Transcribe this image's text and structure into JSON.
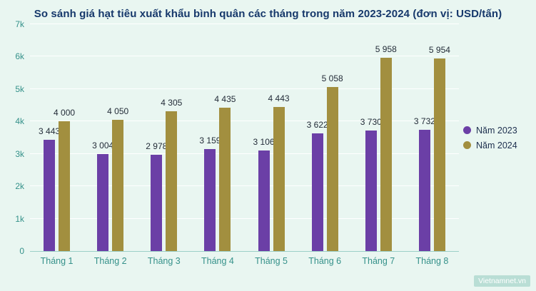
{
  "title": "So sánh giá hạt tiêu xuất khẩu bình quân các tháng trong năm 2023-2024 (đơn vị: USD/tấn)",
  "watermark": "Vietnamnet.vn",
  "colors": {
    "background": "#e9f6f1",
    "series_2023": "#6b3fa6",
    "series_2024": "#a28f3f",
    "axis_text": "#35918a",
    "title_text": "#16386b",
    "label_text": "#232c38"
  },
  "chart_data": {
    "type": "bar",
    "title": "So sánh giá hạt tiêu xuất khẩu bình quân các tháng trong năm 2023-2024 (đơn vị: USD/tấn)",
    "categories": [
      "Tháng 1",
      "Tháng 2",
      "Tháng 3",
      "Tháng 4",
      "Tháng 5",
      "Tháng 6",
      "Tháng 7",
      "Tháng 8"
    ],
    "series": [
      {
        "name": "Năm 2023",
        "color": "#6b3fa6",
        "values": [
          3443,
          3004,
          2978,
          3159,
          3106,
          3622,
          3730,
          3732
        ],
        "labels": [
          "3 443",
          "3 004",
          "2 978",
          "3 159",
          "3 106",
          "3 622",
          "3 730",
          "3 732"
        ]
      },
      {
        "name": "Năm 2024",
        "color": "#a28f3f",
        "values": [
          4000,
          4050,
          4305,
          4435,
          4443,
          5058,
          5958,
          5954
        ],
        "labels": [
          "4 000",
          "4 050",
          "4 305",
          "4 435",
          "4 443",
          "5 058",
          "5 958",
          "5 954"
        ]
      }
    ],
    "xlabel": "",
    "ylabel": "",
    "ylim": [
      0,
      7000
    ],
    "yticks": [
      "0",
      "1k",
      "2k",
      "3k",
      "4k",
      "5k",
      "6k",
      "7k"
    ],
    "grid": true,
    "legend_position": "right"
  }
}
